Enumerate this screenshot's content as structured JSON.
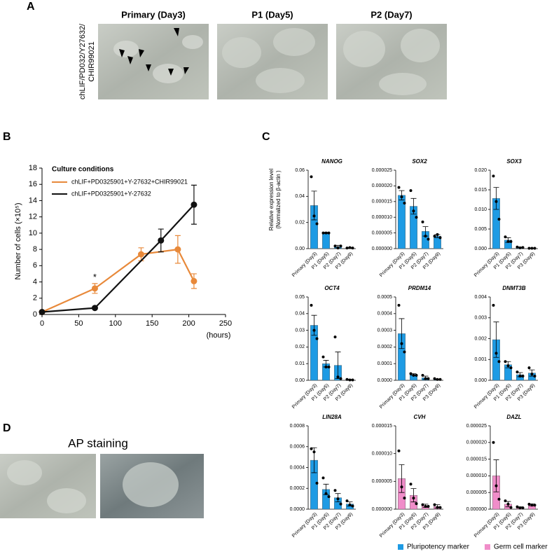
{
  "panel_labels": [
    "A",
    "B",
    "C",
    "D"
  ],
  "panel_a": {
    "row_label_lines": [
      "chLIF/PD032/Y27632/",
      "CHIR99021"
    ],
    "image_titles": [
      "Primary (Day3)",
      "P1 (Day5)",
      "P2 (Day7)"
    ]
  },
  "chart_data": [
    {
      "type": "line",
      "ylabel": "Number of cells (×10⁵)",
      "xlabel": "(hours)",
      "legend_title": "Culture conditions",
      "xlim": [
        0,
        250
      ],
      "xticks": [
        0,
        50,
        100,
        150,
        200,
        250
      ],
      "ylim": [
        0,
        18
      ],
      "yticks": [
        0,
        2,
        4,
        6,
        8,
        10,
        12,
        14,
        16,
        18
      ],
      "series": [
        {
          "name": "chLIF+PD0325901+Y-27632+CHIR99021",
          "color": "#e8893a",
          "x": [
            0,
            72,
            135,
            185,
            207
          ],
          "values": [
            0.3,
            3.2,
            7.4,
            8.0,
            4.1
          ],
          "errors": [
            0,
            0.6,
            0.8,
            1.7,
            0.9
          ]
        },
        {
          "name": "chLIF+PD0325901+Y-27632",
          "color": "#111111",
          "x": [
            0,
            72,
            162,
            207
          ],
          "values": [
            0.3,
            0.8,
            9.1,
            13.5
          ],
          "errors": [
            0,
            0,
            1.4,
            2.4
          ]
        }
      ],
      "annotations": [
        {
          "text": "*",
          "x": 72,
          "y": 4.5
        }
      ]
    },
    {
      "type": "bar",
      "title": "NANOG",
      "ylabel_lines": [
        "Relative expression level",
        "(Normalized to β-actin )"
      ],
      "color": "#1e9be4",
      "categories": [
        "Primary (Day3)",
        "P1 (Day5)",
        "P2 (Day7)",
        "P3 (Day9)"
      ],
      "values": [
        0.033,
        0.012,
        0.0015,
        0.0005
      ],
      "errors": [
        0.011,
        0.0005,
        0.001,
        0.0003
      ],
      "points": [
        [
          0.055,
          0.025,
          0.019
        ],
        [
          0.012,
          0.012,
          0.012
        ],
        [
          0.002,
          0.0005,
          0.002
        ],
        [
          0.0005,
          0.0008,
          0.0005
        ]
      ],
      "ylim": [
        0,
        0.06
      ],
      "yticks": [
        {
          "value": 0,
          "label": "0.00"
        },
        {
          "value": 0.02,
          "label": "0.02"
        },
        {
          "value": 0.04,
          "label": "0.04"
        },
        {
          "value": 0.06,
          "label": "0.06"
        }
      ]
    },
    {
      "type": "bar",
      "title": "SOX2",
      "color": "#1e9be4",
      "categories": [
        "Primary (Day3)",
        "P1 (Day5)",
        "P2 (Day7)",
        "P3 (Day9)"
      ],
      "values": [
        1.7e-05,
        1.35e-05,
        5.5e-06,
        4e-06
      ],
      "errors": [
        1.5e-06,
        2.5e-06,
        1.5e-06,
        5e-07
      ],
      "points": [
        [
          1.95e-05,
          1.65e-05,
          1.45e-05
        ],
        [
          1.85e-05,
          1.2e-05,
          1e-05
        ],
        [
          8.5e-06,
          4e-06,
          3e-06
        ],
        [
          4e-06,
          4.5e-06,
          3.5e-06
        ]
      ],
      "ylim": [
        0,
        2.5e-05
      ],
      "yticks": [
        {
          "value": 0,
          "label": "0.000000"
        },
        {
          "value": 5e-06,
          "label": "0.000005"
        },
        {
          "value": 1e-05,
          "label": "0.000010"
        },
        {
          "value": 1.5e-05,
          "label": "0.000015"
        },
        {
          "value": 2e-05,
          "label": "0.000020"
        },
        {
          "value": 2.5e-05,
          "label": "0.000025"
        }
      ]
    },
    {
      "type": "bar",
      "title": "SOX3",
      "color": "#1e9be4",
      "categories": [
        "Primary (Day3)",
        "P1 (Day5)",
        "P2 (Day7)",
        "P3 (Day9)"
      ],
      "values": [
        0.0128,
        0.0022,
        0.0003,
        0.0001
      ],
      "errors": [
        0.0028,
        0.0006,
        0.0001,
        5e-05
      ],
      "points": [
        [
          0.0185,
          0.012,
          0.0075
        ],
        [
          0.003,
          0.0018,
          0.0018
        ],
        [
          0.0004,
          0.0002,
          0.0003
        ],
        [
          0.0001,
          0.0001,
          0.0001
        ]
      ],
      "ylim": [
        0,
        0.02
      ],
      "yticks": [
        {
          "value": 0,
          "label": "0.000"
        },
        {
          "value": 0.005,
          "label": "0.005"
        },
        {
          "value": 0.01,
          "label": "0.010"
        },
        {
          "value": 0.015,
          "label": "0.015"
        },
        {
          "value": 0.02,
          "label": "0.020"
        }
      ]
    },
    {
      "type": "bar",
      "title": "OCT4",
      "color": "#1e9be4",
      "categories": [
        "Primary (Day3)",
        "P1 (Day5)",
        "P2 (Day7)",
        "P3 (Day9)"
      ],
      "values": [
        0.033,
        0.01,
        0.009,
        0.0003
      ],
      "errors": [
        0.006,
        0.002,
        0.008,
        0.0002
      ],
      "points": [
        [
          0.045,
          0.03,
          0.025
        ],
        [
          0.014,
          0.008,
          0.008
        ],
        [
          0.026,
          0.002,
          0.001
        ],
        [
          0.0005,
          0.0002,
          0.0002
        ]
      ],
      "ylim": [
        0,
        0.05
      ],
      "yticks": [
        {
          "value": 0,
          "label": "0.00"
        },
        {
          "value": 0.01,
          "label": "0.01"
        },
        {
          "value": 0.02,
          "label": "0.02"
        },
        {
          "value": 0.03,
          "label": "0.03"
        },
        {
          "value": 0.04,
          "label": "0.04"
        },
        {
          "value": 0.05,
          "label": "0.05"
        }
      ]
    },
    {
      "type": "bar",
      "title": "PRDM14",
      "color": "#1e9be4",
      "categories": [
        "Primary (Day3)",
        "P1 (Day5)",
        "P2 (Day7)",
        "P3 (Day9)"
      ],
      "values": [
        0.00028,
        3.5e-05,
        1.5e-05,
        5e-06
      ],
      "errors": [
        9e-05,
        5e-06,
        1e-05,
        2e-06
      ],
      "points": [
        [
          0.00045,
          0.00022,
          0.00017
        ],
        [
          4e-05,
          3e-05,
          3e-05
        ],
        [
          3e-05,
          1e-05,
          1e-05
        ],
        [
          1e-05,
          5e-06,
          5e-06
        ]
      ],
      "ylim": [
        0,
        0.0005
      ],
      "yticks": [
        {
          "value": 0,
          "label": "0.0000"
        },
        {
          "value": 0.0001,
          "label": "0.0001"
        },
        {
          "value": 0.0002,
          "label": "0.0002"
        },
        {
          "value": 0.0003,
          "label": "0.0003"
        },
        {
          "value": 0.0004,
          "label": "0.0004"
        },
        {
          "value": 0.0005,
          "label": "0.0005"
        }
      ]
    },
    {
      "type": "bar",
      "title": "DNMT3B",
      "color": "#1e9be4",
      "categories": [
        "Primary (Day3)",
        "P1 (Day5)",
        "P2 (Day7)",
        "P3 (Day9)"
      ],
      "values": [
        0.00195,
        0.00075,
        0.00027,
        0.00035
      ],
      "errors": [
        0.00085,
        0.00015,
        0.0001,
        0.00015
      ],
      "points": [
        [
          0.0036,
          0.0013,
          0.0009
        ],
        [
          0.0009,
          0.0007,
          0.0006
        ],
        [
          0.0004,
          0.0002,
          0.0002
        ],
        [
          0.0006,
          0.0003,
          0.0002
        ]
      ],
      "ylim": [
        0,
        0.004
      ],
      "yticks": [
        {
          "value": 0,
          "label": "0.000"
        },
        {
          "value": 0.001,
          "label": "0.001"
        },
        {
          "value": 0.002,
          "label": "0.002"
        },
        {
          "value": 0.003,
          "label": "0.003"
        },
        {
          "value": 0.004,
          "label": "0.004"
        }
      ]
    },
    {
      "type": "bar",
      "title": "LIN28A",
      "color": "#1e9be4",
      "categories": [
        "Primary (Day3)",
        "P1 (Day5)",
        "P2 (Day7)",
        "P3 (Day9)"
      ],
      "values": [
        0.00047,
        0.00019,
        0.00011,
        5e-05
      ],
      "errors": [
        0.00012,
        5e-05,
        4e-05,
        2e-05
      ],
      "points": [
        [
          0.00058,
          0.00055,
          0.00025
        ],
        [
          0.0003,
          0.00015,
          0.00012
        ],
        [
          0.00018,
          0.0001,
          5e-05
        ],
        [
          8e-05,
          4e-05,
          3e-05
        ]
      ],
      "ylim": [
        0,
        0.0008
      ],
      "yticks": [
        {
          "value": 0,
          "label": "0.0000"
        },
        {
          "value": 0.0002,
          "label": "0.0002"
        },
        {
          "value": 0.0004,
          "label": "0.0004"
        },
        {
          "value": 0.0006,
          "label": "0.0006"
        },
        {
          "value": 0.0008,
          "label": "0.0008"
        }
      ]
    },
    {
      "type": "bar",
      "title": "CVH",
      "color": "#f08dc9",
      "categories": [
        "Primary (Day3)",
        "P1 (Day5)",
        "P2 (Day7)",
        "P3 (Day9)"
      ],
      "values": [
        5.5e-06,
        2.5e-06,
        6e-07,
        5e-07
      ],
      "errors": [
        2.5e-06,
        1.2e-06,
        3e-07,
        3e-07
      ],
      "points": [
        [
          1.05e-05,
          4e-06,
          2e-06
        ],
        [
          4.5e-06,
          2e-06,
          1e-06
        ],
        [
          8e-07,
          5e-07,
          5e-07
        ],
        [
          8e-07,
          3e-07,
          3e-07
        ]
      ],
      "ylim": [
        0,
        1.5e-05
      ],
      "yticks": [
        {
          "value": 0,
          "label": "0.000000"
        },
        {
          "value": 5e-06,
          "label": "0.000005"
        },
        {
          "value": 1e-05,
          "label": "0.000010"
        },
        {
          "value": 1.5e-05,
          "label": "0.000015"
        }
      ]
    },
    {
      "type": "bar",
      "title": "DAZL",
      "color": "#f08dc9",
      "categories": [
        "Primary (Day3)",
        "P1 (Day5)",
        "P2 (Day7)",
        "P3 (Day9)"
      ],
      "values": [
        1e-05,
        1.5e-06,
        5e-07,
        1.3e-06
      ],
      "errors": [
        4.8e-06,
        8e-07,
        2e-07,
        3e-07
      ],
      "points": [
        [
          2e-05,
          7e-06,
          3e-06
        ],
        [
          2.5e-06,
          1.5e-06,
          5e-07
        ],
        [
          7e-07,
          4e-07,
          4e-07
        ],
        [
          1.5e-06,
          1.2e-06,
          1.2e-06
        ]
      ],
      "ylim": [
        0,
        2.5e-05
      ],
      "yticks": [
        {
          "value": 0,
          "label": "0.000000"
        },
        {
          "value": 5e-06,
          "label": "0.000005"
        },
        {
          "value": 1e-05,
          "label": "0.000010"
        },
        {
          "value": 1.5e-05,
          "label": "0.000015"
        },
        {
          "value": 2e-05,
          "label": "0.000020"
        },
        {
          "value": 2.5e-05,
          "label": "0.000025"
        }
      ]
    }
  ],
  "marker_legend": [
    {
      "name": "Pluripotency marker",
      "color": "#1e9be4"
    },
    {
      "name": "Germ cell marker",
      "color": "#f08dc9"
    }
  ],
  "panel_d": {
    "title": "AP staining"
  }
}
